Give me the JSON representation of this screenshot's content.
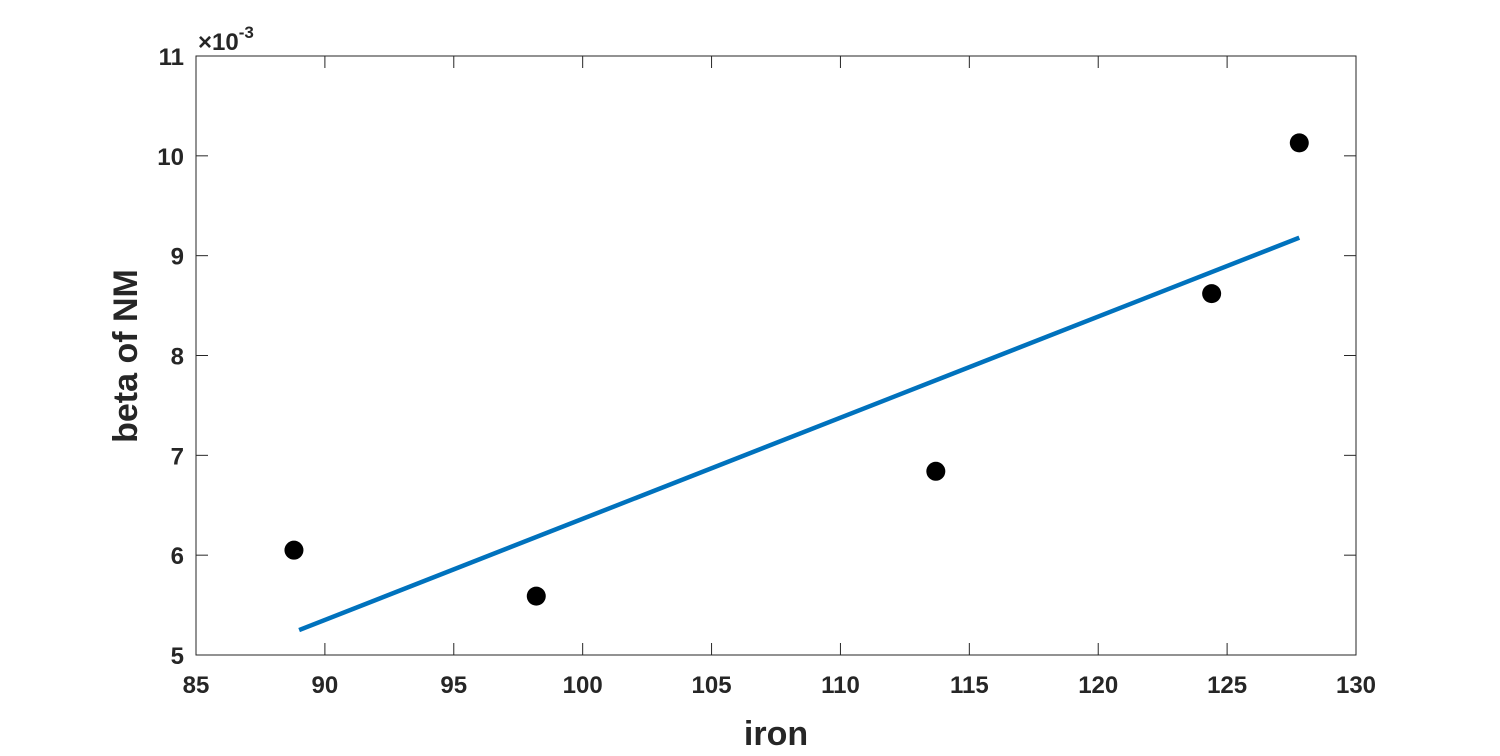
{
  "chart_data": {
    "type": "scatter",
    "xlabel": "iron",
    "ylabel": "beta of NM",
    "y_exponent_label": "×10",
    "y_exponent_power": "-3",
    "xlim": [
      85,
      130
    ],
    "ylim": [
      5,
      11
    ],
    "x_ticks": [
      85,
      90,
      95,
      100,
      105,
      110,
      115,
      120,
      125,
      130
    ],
    "y_ticks": [
      5,
      6,
      7,
      8,
      9,
      10,
      11
    ],
    "grid": false,
    "points": {
      "x": [
        88.8,
        98.2,
        113.7,
        124.4,
        127.8
      ],
      "y": [
        6.05,
        5.59,
        6.84,
        8.62,
        10.13
      ],
      "color": "#000000"
    },
    "fit_line": {
      "x": [
        89.0,
        127.8
      ],
      "y": [
        5.25,
        9.18
      ],
      "color": "#0072BD"
    }
  }
}
